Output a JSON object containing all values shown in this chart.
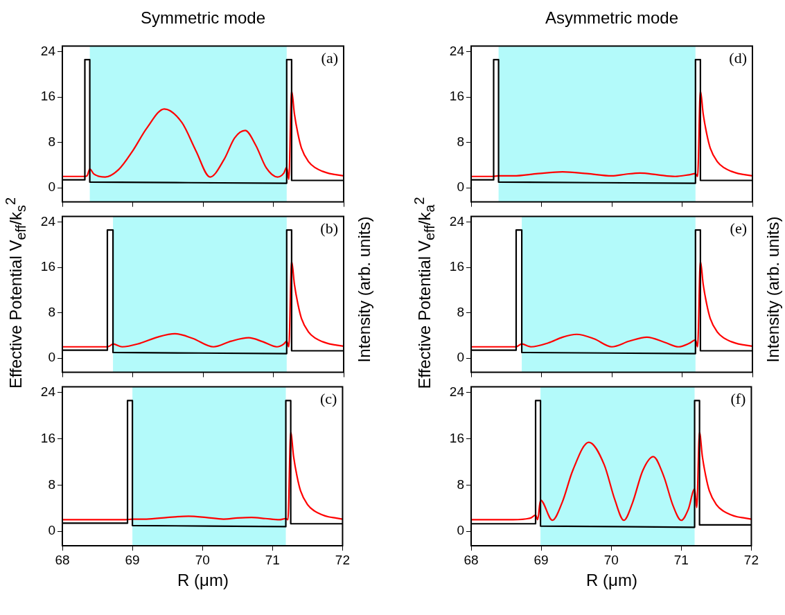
{
  "chart_data": [
    {
      "type": "line",
      "title": "Symmetric mode",
      "annotations": [
        "(a)"
      ],
      "xlim": [
        68,
        72
      ],
      "xticks": [
        68,
        69,
        70,
        71,
        72
      ],
      "ylim": [
        -2.5,
        25
      ],
      "yticks": [
        0,
        8,
        16,
        24
      ],
      "tick_labels": "y",
      "grid": false,
      "marker": "none",
      "bands": [
        {
          "axis": "x",
          "from": 68.39,
          "to": 71.19,
          "color": "#b3fafa"
        }
      ],
      "series": [
        {
          "color": "#000000",
          "x": [
            68,
            68.32,
            68.32,
            68.39,
            68.39,
            71.19,
            71.19,
            71.26,
            71.26,
            72
          ],
          "values": [
            1.4,
            1.4,
            22.6,
            22.6,
            1.0,
            0.8,
            22.6,
            22.6,
            1.3,
            1.3
          ]
        },
        {
          "color": "#ff0000",
          "x": [
            68,
            68.3,
            68.35,
            68.39,
            68.45,
            68.61,
            68.8,
            69.0,
            69.2,
            69.45,
            69.7,
            69.9,
            70.1,
            70.3,
            70.45,
            70.6,
            70.75,
            70.9,
            71.06,
            71.15,
            71.19,
            71.22,
            71.26,
            71.3,
            71.35,
            71.4,
            71.5,
            71.6,
            71.7,
            71.8,
            71.9,
            72
          ],
          "values": [
            2.0,
            2.0,
            2.1,
            3.3,
            2.4,
            1.9,
            3.2,
            6.5,
            10.5,
            13.9,
            11.5,
            6.5,
            1.9,
            5.0,
            8.8,
            10.1,
            7.5,
            3.5,
            1.9,
            2.6,
            3.6,
            1.5,
            17.1,
            13,
            9.5,
            7,
            4.6,
            3.5,
            2.9,
            2.5,
            2.3,
            2.1
          ]
        }
      ]
    },
    {
      "type": "line",
      "annotations": [
        "(b)"
      ],
      "ylabel": "Effective Potential V$_{eff}$/k$_{s}$$^{2}$",
      "y2label": "Intensity (arb. units)",
      "xlim": [
        68,
        72
      ],
      "xticks": [
        68,
        69,
        70,
        71,
        72
      ],
      "ylim": [
        -2.5,
        25
      ],
      "yticks": [
        0,
        8,
        16,
        24
      ],
      "tick_labels": "y",
      "grid": false,
      "marker": "none",
      "bands": [
        {
          "axis": "x",
          "from": 68.72,
          "to": 71.19,
          "color": "#b3fafa"
        }
      ],
      "series": [
        {
          "color": "#000000",
          "x": [
            68,
            68.64,
            68.64,
            68.72,
            68.72,
            71.19,
            71.19,
            71.26,
            71.26,
            72
          ],
          "values": [
            1.4,
            1.4,
            22.6,
            22.6,
            1.0,
            0.8,
            22.6,
            22.6,
            1.3,
            1.3
          ]
        },
        {
          "color": "#ff0000",
          "x": [
            68,
            68.64,
            68.68,
            68.72,
            68.85,
            69.1,
            69.35,
            69.6,
            69.85,
            70.15,
            70.4,
            70.65,
            70.85,
            71.05,
            71.15,
            71.19,
            71.22,
            71.26,
            71.3,
            71.35,
            71.4,
            71.5,
            71.6,
            71.7,
            71.8,
            71.9,
            72
          ],
          "values": [
            2.0,
            2.0,
            2.2,
            2.5,
            2.0,
            2.6,
            3.7,
            4.3,
            3.5,
            2.0,
            3.0,
            3.6,
            2.9,
            2.0,
            2.5,
            3.0,
            2.0,
            17.1,
            13,
            9.5,
            7,
            4.6,
            3.5,
            2.9,
            2.5,
            2.3,
            2.1
          ]
        }
      ]
    },
    {
      "type": "line",
      "annotations": [
        "(c)"
      ],
      "xlabel": "R (μm)",
      "xlim": [
        68,
        72
      ],
      "xticks": [
        68,
        69,
        70,
        71,
        72
      ],
      "ylim": [
        -2.5,
        25
      ],
      "yticks": [
        0,
        8,
        16,
        24
      ],
      "grid": false,
      "marker": "none",
      "bands": [
        {
          "axis": "x",
          "from": 69.0,
          "to": 71.19,
          "color": "#b3fafa"
        }
      ],
      "series": [
        {
          "color": "#000000",
          "x": [
            68,
            68.93,
            68.93,
            69.0,
            69.0,
            71.19,
            71.19,
            71.26,
            71.26,
            72
          ],
          "values": [
            1.4,
            1.4,
            22.6,
            22.6,
            1.0,
            0.8,
            22.6,
            22.6,
            1.3,
            1.3
          ]
        },
        {
          "color": "#ff0000",
          "x": [
            68,
            68.9,
            69.0,
            69.2,
            69.5,
            69.8,
            70.05,
            70.3,
            70.5,
            70.7,
            70.9,
            71.1,
            71.19,
            71.22,
            71.26,
            71.3,
            71.35,
            71.4,
            71.5,
            71.6,
            71.7,
            71.8,
            71.9,
            72
          ],
          "values": [
            2.0,
            2.0,
            2.1,
            2.1,
            2.4,
            2.6,
            2.4,
            2.1,
            2.3,
            2.4,
            2.2,
            2.0,
            2.2,
            2.0,
            17.1,
            13,
            9.5,
            7,
            4.6,
            3.5,
            2.9,
            2.5,
            2.3,
            2.1
          ]
        }
      ]
    },
    {
      "type": "line",
      "title": "Asymmetric mode",
      "annotations": [
        "(d)"
      ],
      "xlim": [
        68,
        72
      ],
      "xticks": [
        68,
        69,
        70,
        71,
        72
      ],
      "ylim": [
        -2.5,
        25
      ],
      "yticks": [
        0,
        8,
        16,
        24
      ],
      "tick_labels": "y",
      "grid": false,
      "marker": "none",
      "bands": [
        {
          "axis": "x",
          "from": 68.39,
          "to": 71.19,
          "color": "#b3fafa"
        }
      ],
      "series": [
        {
          "color": "#000000",
          "x": [
            68,
            68.32,
            68.32,
            68.39,
            68.39,
            71.19,
            71.19,
            71.26,
            71.26,
            72
          ],
          "values": [
            1.4,
            1.4,
            22.6,
            22.6,
            1.0,
            0.8,
            22.6,
            22.6,
            1.3,
            1.3
          ]
        },
        {
          "color": "#ff0000",
          "x": [
            68,
            68.3,
            68.39,
            68.6,
            68.95,
            69.3,
            69.65,
            70.0,
            70.2,
            70.4,
            70.65,
            70.9,
            71.1,
            71.19,
            71.22,
            71.26,
            71.3,
            71.35,
            71.4,
            71.5,
            71.6,
            71.7,
            71.8,
            71.9,
            72
          ],
          "values": [
            2.0,
            2.0,
            2.1,
            2.1,
            2.5,
            2.8,
            2.5,
            2.1,
            2.4,
            2.6,
            2.3,
            2.0,
            2.3,
            2.5,
            2.0,
            17.1,
            13,
            9.5,
            7,
            4.6,
            3.5,
            2.9,
            2.5,
            2.3,
            2.1
          ]
        }
      ]
    },
    {
      "type": "line",
      "annotations": [
        "(e)"
      ],
      "ylabel": "Effective Potential V$_{eff}$/k$_{a}$$^{2}$",
      "y2label": "Intensity (arb. units)",
      "xlim": [
        68,
        72
      ],
      "xticks": [
        68,
        69,
        70,
        71,
        72
      ],
      "ylim": [
        -2.5,
        25
      ],
      "yticks": [
        0,
        8,
        16,
        24
      ],
      "tick_labels": "y",
      "grid": false,
      "marker": "none",
      "bands": [
        {
          "axis": "x",
          "from": 68.72,
          "to": 71.19,
          "color": "#b3fafa"
        }
      ],
      "series": [
        {
          "color": "#000000",
          "x": [
            68,
            68.64,
            68.64,
            68.72,
            68.72,
            71.19,
            71.19,
            71.26,
            71.26,
            72
          ],
          "values": [
            1.4,
            1.4,
            22.6,
            22.6,
            1.0,
            0.8,
            22.6,
            22.6,
            1.3,
            1.3
          ]
        },
        {
          "color": "#ff0000",
          "x": [
            68,
            68.64,
            68.72,
            68.85,
            69.1,
            69.3,
            69.5,
            69.75,
            70.0,
            70.25,
            70.5,
            70.75,
            70.95,
            71.1,
            71.19,
            71.22,
            71.26,
            71.3,
            71.35,
            71.4,
            71.5,
            71.6,
            71.7,
            71.8,
            71.9,
            72
          ],
          "values": [
            2.0,
            2.0,
            2.5,
            2.0,
            2.7,
            3.7,
            4.2,
            3.4,
            2.0,
            3.0,
            3.7,
            2.8,
            2.0,
            2.6,
            3.2,
            2.0,
            17.1,
            13,
            9.5,
            7,
            4.6,
            3.5,
            2.9,
            2.5,
            2.3,
            2.1
          ]
        }
      ]
    },
    {
      "type": "line",
      "annotations": [
        "(f)"
      ],
      "xlabel": "R (μm)",
      "xlim": [
        68,
        72
      ],
      "xticks": [
        68,
        69,
        70,
        71,
        72
      ],
      "ylim": [
        -2.5,
        25
      ],
      "yticks": [
        0,
        8,
        16,
        24
      ],
      "grid": false,
      "marker": "none",
      "bands": [
        {
          "axis": "x",
          "from": 68.99,
          "to": 71.19,
          "color": "#b3fafa"
        }
      ],
      "series": [
        {
          "color": "#000000",
          "x": [
            68,
            68.92,
            68.92,
            68.99,
            68.99,
            71.19,
            71.19,
            71.26,
            71.26,
            72
          ],
          "values": [
            1.3,
            1.3,
            22.6,
            22.6,
            0.9,
            0.7,
            22.6,
            22.6,
            1.1,
            1.1
          ]
        },
        {
          "color": "#ff0000",
          "x": [
            68,
            68.6,
            68.85,
            68.92,
            68.95,
            68.99,
            69.16,
            69.3,
            69.45,
            69.68,
            69.9,
            70.05,
            70.18,
            70.3,
            70.45,
            70.6,
            70.75,
            70.88,
            71.0,
            71.1,
            71.19,
            71.22,
            71.26,
            71.3,
            71.35,
            71.4,
            71.5,
            71.6,
            71.7,
            71.8,
            71.9,
            72
          ],
          "values": [
            2.0,
            2.0,
            2.3,
            2.8,
            2.0,
            5.4,
            1.9,
            5.0,
            10.5,
            15.4,
            11.5,
            5.5,
            1.9,
            4.8,
            10.5,
            12.9,
            9.5,
            4.5,
            1.9,
            3.8,
            7.3,
            4.1,
            17.1,
            13,
            9.5,
            7,
            4.6,
            3.5,
            2.9,
            2.5,
            2.3,
            2.1
          ]
        }
      ]
    }
  ]
}
